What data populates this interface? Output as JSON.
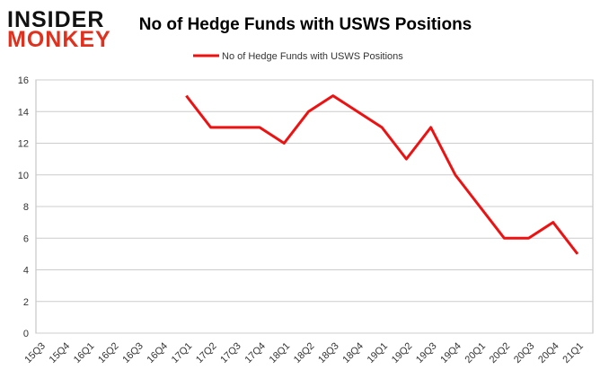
{
  "logo": [
    "INSIDER",
    "MONKEY"
  ],
  "chart_data": {
    "type": "line",
    "title": "No of Hedge Funds with USWS Positions",
    "categories": [
      "15Q3",
      "15Q4",
      "16Q1",
      "16Q2",
      "16Q3",
      "16Q4",
      "17Q1",
      "17Q2",
      "17Q3",
      "17Q4",
      "18Q1",
      "18Q2",
      "18Q3",
      "18Q4",
      "19Q1",
      "19Q2",
      "19Q3",
      "19Q4",
      "20Q1",
      "20Q2",
      "20Q3",
      "20Q4",
      "21Q1"
    ],
    "series": [
      {
        "name": "No of Hedge Funds with USWS Positions",
        "color": "#ee1111",
        "values": [
          null,
          null,
          null,
          null,
          null,
          null,
          15,
          13,
          13,
          13,
          12,
          14,
          15,
          14,
          13,
          11,
          13,
          10,
          8,
          6,
          6,
          7,
          5
        ]
      }
    ],
    "ylim": [
      0,
      16
    ],
    "yticks": [
      0,
      2,
      4,
      6,
      8,
      10,
      12,
      14,
      16
    ],
    "grid": true,
    "legend": "top"
  }
}
